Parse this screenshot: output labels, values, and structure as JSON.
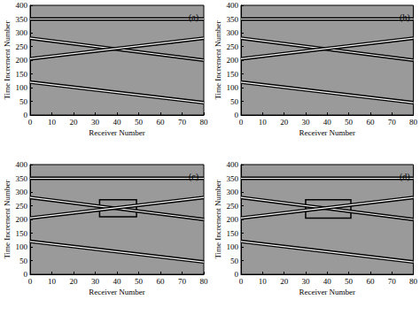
{
  "chart_data": [
    {
      "type": "line",
      "title": "(a)",
      "x_label": "Receiver Number",
      "y_label": "Time Increment Number",
      "xlim": [
        0,
        80
      ],
      "ylim": [
        0,
        400
      ],
      "xticks": [
        0,
        10,
        20,
        30,
        40,
        50,
        60,
        70,
        80
      ],
      "yticks": [
        0,
        50,
        100,
        150,
        200,
        250,
        300,
        350,
        400
      ],
      "grid": false,
      "color": "#000000",
      "series": [
        {
          "x": [
            0,
            80
          ],
          "values": [
            350,
            350
          ]
        },
        {
          "x": [
            0,
            80
          ],
          "values": [
            280,
            200
          ]
        },
        {
          "x": [
            0,
            80
          ],
          "values": [
            205,
            280
          ]
        },
        {
          "x": [
            0,
            80
          ],
          "values": [
            120,
            45
          ]
        }
      ]
    },
    {
      "type": "line",
      "title": "(b)",
      "x_label": "Receiver Number",
      "y_label": "Time Increment Number",
      "xlim": [
        0,
        80
      ],
      "ylim": [
        0,
        400
      ],
      "xticks": [
        0,
        10,
        20,
        30,
        40,
        50,
        60,
        70,
        80
      ],
      "yticks": [
        0,
        50,
        100,
        150,
        200,
        250,
        300,
        350,
        400
      ],
      "grid": false,
      "color": "#000000",
      "series": [
        {
          "x": [
            0,
            80
          ],
          "values": [
            350,
            350
          ]
        },
        {
          "x": [
            0,
            80
          ],
          "values": [
            280,
            200
          ]
        },
        {
          "x": [
            0,
            80
          ],
          "values": [
            205,
            280
          ]
        },
        {
          "x": [
            0,
            80
          ],
          "values": [
            120,
            45
          ]
        }
      ]
    },
    {
      "type": "line",
      "title": "(c)",
      "x_label": "Receiver Number",
      "y_label": "Time Increment Number",
      "xlim": [
        0,
        80
      ],
      "ylim": [
        0,
        400
      ],
      "xticks": [
        0,
        10,
        20,
        30,
        40,
        50,
        60,
        70,
        80
      ],
      "yticks": [
        0,
        50,
        100,
        150,
        200,
        250,
        300,
        350,
        400
      ],
      "grid": false,
      "color": "#000000",
      "box": {
        "x": [
          32,
          49
        ],
        "y": [
          210,
          272
        ]
      },
      "series": [
        {
          "x": [
            0,
            80
          ],
          "values": [
            350,
            350
          ]
        },
        {
          "x": [
            0,
            80
          ],
          "values": [
            280,
            200
          ]
        },
        {
          "x": [
            0,
            80
          ],
          "values": [
            205,
            280
          ]
        },
        {
          "x": [
            0,
            80
          ],
          "values": [
            120,
            45
          ]
        }
      ]
    },
    {
      "type": "line",
      "title": "(d)",
      "x_label": "Receiver Number",
      "y_label": "Time Increment Number",
      "xlim": [
        0,
        80
      ],
      "ylim": [
        0,
        400
      ],
      "xticks": [
        0,
        10,
        20,
        30,
        40,
        50,
        60,
        70,
        80
      ],
      "yticks": [
        0,
        50,
        100,
        150,
        200,
        250,
        300,
        350,
        400
      ],
      "grid": false,
      "color": "#000000",
      "box": {
        "x": [
          30,
          51
        ],
        "y": [
          205,
          272
        ]
      },
      "series": [
        {
          "x": [
            0,
            80
          ],
          "values": [
            350,
            350
          ]
        },
        {
          "x": [
            0,
            80
          ],
          "values": [
            280,
            200
          ]
        },
        {
          "x": [
            0,
            80
          ],
          "values": [
            205,
            280
          ]
        },
        {
          "x": [
            0,
            80
          ],
          "values": [
            120,
            45
          ]
        }
      ]
    }
  ]
}
